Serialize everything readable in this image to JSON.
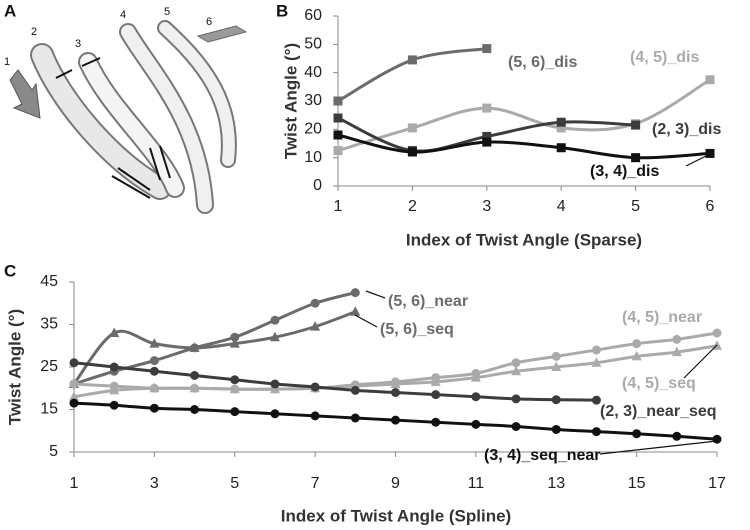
{
  "image_panel": {
    "label": "A",
    "segment_labels": [
      "1",
      "2",
      "3",
      "4",
      "5",
      "6"
    ]
  },
  "chart_data": [
    {
      "type": "line",
      "panel": "B",
      "x_label": "Index of Twist Angle (Sparse)",
      "y_label": "Twist Angle (°)",
      "x": [
        1,
        2,
        3,
        4,
        5,
        6
      ],
      "xlim": [
        1,
        6
      ],
      "xticks": [
        1,
        2,
        3,
        4,
        5,
        6
      ],
      "ylim": [
        0,
        60
      ],
      "yticks": [
        0,
        10,
        20,
        30,
        40,
        50,
        60
      ],
      "smooth": true,
      "grid": false,
      "series": [
        {
          "name": "(5, 6)_dis",
          "color": "#6b6b6b",
          "marker": "square",
          "values": [
            30,
            44.5,
            48.5,
            null,
            null,
            null
          ]
        },
        {
          "name": "(4, 5)_dis",
          "color": "#aaaaaa",
          "marker": "square",
          "values": [
            12.5,
            20.5,
            27.5,
            20.5,
            22,
            37.5
          ]
        },
        {
          "name": "(2, 3)_dis",
          "color": "#3c3c3c",
          "marker": "square",
          "values": [
            24,
            12.5,
            17.5,
            22.5,
            21.5,
            null
          ]
        },
        {
          "name": "(3, 4)_dis",
          "color": "#111111",
          "marker": "square",
          "values": [
            18,
            12,
            15.5,
            13.5,
            10,
            11.5
          ]
        }
      ]
    },
    {
      "type": "line",
      "panel": "C",
      "x_label": "Index of Twist Angle (Spline)",
      "y_label": "Twist Angle (°)",
      "x": [
        1,
        2,
        3,
        4,
        5,
        6,
        7,
        8,
        9,
        10,
        11,
        12,
        13,
        14,
        15,
        16,
        17
      ],
      "xlim": [
        1,
        17
      ],
      "xticks": [
        1,
        3,
        5,
        7,
        9,
        11,
        13,
        15,
        17
      ],
      "ylim": [
        5,
        45
      ],
      "yticks": [
        5,
        15,
        25,
        35,
        45
      ],
      "smooth": true,
      "grid": false,
      "series": [
        {
          "name": "(5, 6)_near",
          "color": "#6b6b6b",
          "marker": "circle",
          "values": [
            21,
            24,
            26.5,
            29.5,
            32,
            36,
            40,
            42.5,
            null,
            null,
            null,
            null,
            null,
            null,
            null,
            null,
            null
          ]
        },
        {
          "name": "(5, 6)_seq",
          "color": "#6b6b6b",
          "marker": "triangle",
          "values": [
            21,
            33,
            30.5,
            29.5,
            30.5,
            32,
            34.5,
            38,
            null,
            null,
            null,
            null,
            null,
            null,
            null,
            null,
            null
          ]
        },
        {
          "name": "(4, 5)_near",
          "color": "#aaaaaa",
          "marker": "circle",
          "values": [
            21,
            20.5,
            20,
            20,
            19.8,
            19.8,
            20,
            20.8,
            21.5,
            22.5,
            23.5,
            26,
            27.5,
            29,
            30.5,
            31.5,
            33
          ]
        },
        {
          "name": "(4, 5)_seq",
          "color": "#aaaaaa",
          "marker": "triangle",
          "values": [
            18,
            19.5,
            20,
            20,
            19.8,
            19.8,
            20,
            20.5,
            21,
            21.5,
            22.5,
            24,
            25,
            26,
            27.5,
            28.5,
            30
          ]
        },
        {
          "name": "(2, 3)_near_seq",
          "color": "#3c3c3c",
          "marker": "circle",
          "values": [
            26,
            25,
            24,
            23,
            22,
            21,
            20.3,
            19.5,
            19,
            18.5,
            18,
            17.5,
            17.3,
            17.2,
            null,
            null,
            null
          ]
        },
        {
          "name": "(3, 4)_seq_near",
          "color": "#111111",
          "marker": "circle",
          "values": [
            16.5,
            16,
            15.3,
            15,
            14.5,
            14,
            13.5,
            13,
            12.5,
            12,
            11.5,
            11,
            10.3,
            9.8,
            9.3,
            8.7,
            8
          ]
        }
      ]
    }
  ]
}
